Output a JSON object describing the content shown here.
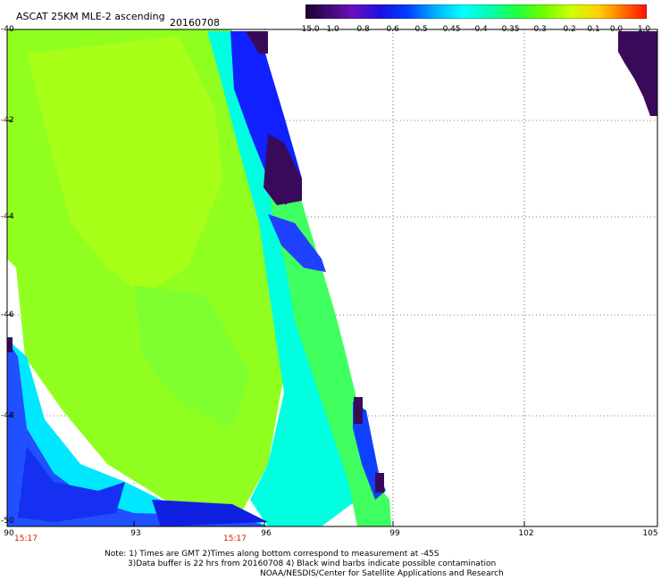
{
  "header": {
    "title": "ASCAT 25KM MLE-2 ascending",
    "date": "20160708"
  },
  "colorbar": {
    "labels": [
      "-15.0",
      "-1.0",
      "-0.8",
      "-0.6",
      "-0.5",
      "-0.45",
      "-0.4",
      "-0.35",
      "-0.3",
      "-0.2",
      "-0.1",
      "0.0",
      "1.0"
    ],
    "colors": [
      "#2a0a4a",
      "#3a0a6a",
      "#5a0aaa",
      "#1a10e0",
      "#0050ff",
      "#0090ff",
      "#00d8ff",
      "#00ffd0",
      "#10ff80",
      "#40ff20",
      "#a0ff00",
      "#f0ff00",
      "#ffb000",
      "#ff5000",
      "#ff1000"
    ]
  },
  "axes": {
    "lon_labels": [
      "90",
      "93",
      "96",
      "99",
      "102",
      "105"
    ],
    "lat_labels": [
      "-40",
      "-42",
      "-44",
      "-46",
      "-48",
      "-50"
    ],
    "time_labels": [
      "15:17",
      "15:17"
    ]
  },
  "colors": {
    "dark_purple": "#3a0a5a",
    "blue": "#1020ff",
    "cyan": "#00ffff",
    "green": "#80ff20",
    "yellow_green": "#b0ff10"
  },
  "footer": {
    "line1": "Note: 1) Times are GMT 2)Times along bottom correspond to measurement at -45S",
    "line2": "3)Data buffer is 22 hrs from 20160708 4) Black wind barbs indicate possible contamination",
    "line3": "NOAA/NESDIS/Center for Satellite Applications and Research"
  }
}
